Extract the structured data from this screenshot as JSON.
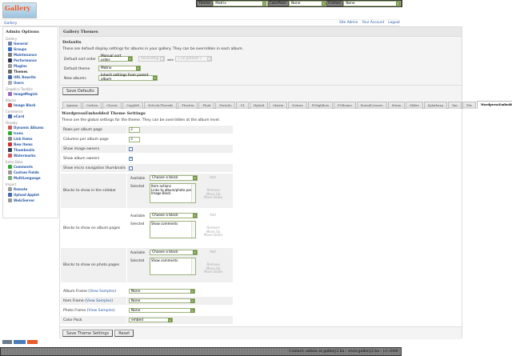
{
  "header": {
    "logo_text": "Gallery",
    "crumb": "Gallery",
    "links": [
      "Site Admin",
      "Your Account",
      "Logout"
    ]
  },
  "topbar": {
    "theme_label": "Theme:",
    "theme_value": "Matrix",
    "colorpack_label": "ColorPack:",
    "colorpack_value": "None",
    "frames_label": "Frames:",
    "frames_value": "None"
  },
  "sidebar": {
    "title": "Admin Options",
    "groups": [
      {
        "name": "Gallery",
        "items": [
          {
            "label": "General",
            "color": "#6a7fa8"
          },
          {
            "label": "Groups",
            "color": "#3a6fc8"
          },
          {
            "label": "Maintenance",
            "color": "#777"
          },
          {
            "label": "Performance",
            "color": "#335"
          },
          {
            "label": "Plugins",
            "color": "#999"
          },
          {
            "label": "Themes",
            "color": "#666",
            "current": true
          },
          {
            "label": "URL Rewrite",
            "color": "#4466aa"
          },
          {
            "label": "Users",
            "color": "#aab"
          }
        ]
      },
      {
        "name": "Graphics Toolkits",
        "items": [
          {
            "label": "ImageMagick",
            "color": "#9a6ab8"
          }
        ]
      },
      {
        "name": "Blocks",
        "items": [
          {
            "label": "Image Block",
            "color": "#c44"
          }
        ]
      },
      {
        "name": "Commerce",
        "items": [
          {
            "label": "eCard",
            "color": "#46a"
          }
        ]
      },
      {
        "name": "Display",
        "items": [
          {
            "label": "Dynamic Albums",
            "color": "#c55"
          },
          {
            "label": "Icons",
            "color": "#3a3"
          },
          {
            "label": "Link Items",
            "color": "#888"
          },
          {
            "label": "New Items",
            "color": "#c33"
          },
          {
            "label": "Thumbnails",
            "color": "#345"
          },
          {
            "label": "Watermarks",
            "color": "#c55"
          }
        ]
      },
      {
        "name": "Extra Data",
        "items": [
          {
            "label": "Comments",
            "color": "#3a3"
          },
          {
            "label": "Custom Fields",
            "color": "#999"
          },
          {
            "label": "MultiLanguage",
            "color": "#7a7"
          }
        ]
      },
      {
        "name": "Import",
        "items": [
          {
            "label": "Remote",
            "color": "#999"
          },
          {
            "label": "Upload Applet",
            "color": "#46a"
          },
          {
            "label": "Web/Server",
            "color": "#999"
          }
        ]
      }
    ]
  },
  "main": {
    "title": "Gallery Themes",
    "defaults": {
      "heading": "Defaults",
      "desc": "These are default display settings for albums in your gallery. They can be overridden in each album.",
      "sort_label": "Default sort order",
      "sort_value": "Manual sort order",
      "sort_dir": "Ascending",
      "with_label": "with",
      "with_value": "« no presort »",
      "theme_label": "Default theme",
      "theme_value": "Matrix",
      "new_label": "New albums",
      "new_value": "Inherit settings from parent album",
      "save": "Save Defaults"
    },
    "tabs": [
      "Ajaxian",
      "Carbon",
      "Classic",
      "Copyleft",
      "EclecticThreads",
      "Floatrix",
      "Fluid",
      "PortaSe",
      "G1",
      "Hybrid",
      "Matrix",
      "Nature",
      "PGlightbox",
      "PGtheme",
      "RoundCorners",
      "Siriux",
      "Slider",
      "Splatburg",
      "Tan",
      "Tile",
      "WordpressEmbedded"
    ],
    "active_tab": "WordpressEmbedded",
    "settings": {
      "heading": "WordpressEmbedded Theme Settings",
      "desc": "These are the global settings for the theme. They can be overridden at the album level.",
      "rows_label": "Rows per album page",
      "rows_value": "3",
      "cols_label": "Columns per album page",
      "cols_value": "3",
      "img_owners_label": "Show image owners",
      "img_owners": false,
      "album_owners_label": "Show album owners",
      "album_owners": true,
      "micro_label": "Show micro navigation thumbnails",
      "micro": false,
      "available": "Available",
      "selected": "Selected",
      "choose": "Choose a block",
      "add": "Add",
      "remove": "Remove",
      "up": "Move Up",
      "down": "Move Down",
      "sidebar_label": "Blocks to show in the sidebar",
      "sidebar_blocks": "Item actions\nLinks to album/photo peers\nImage Block",
      "album_label": "Blocks to show on album pages",
      "album_blocks": "Show comments",
      "photo_label": "Blocks to show on photo pages",
      "photo_blocks": "Show comments",
      "view_samples": "View Samples",
      "album_frame_label": "Album Frame",
      "album_frame": "None",
      "item_frame_label": "Item Frame",
      "item_frame": "None",
      "photo_frame_label": "Photo Frame",
      "photo_frame": "None",
      "colorpack_label": "Color Pack",
      "colorpack": "embed",
      "save": "Save Theme Settings",
      "reset": "Reset"
    }
  },
  "badges": [
    "W3C XHTML 1.0",
    "W3C CSS",
    "PHP POWERED"
  ],
  "footer": "Contact: admin at gallery2.hu - www.gallery2.hu - (c) 2006"
}
